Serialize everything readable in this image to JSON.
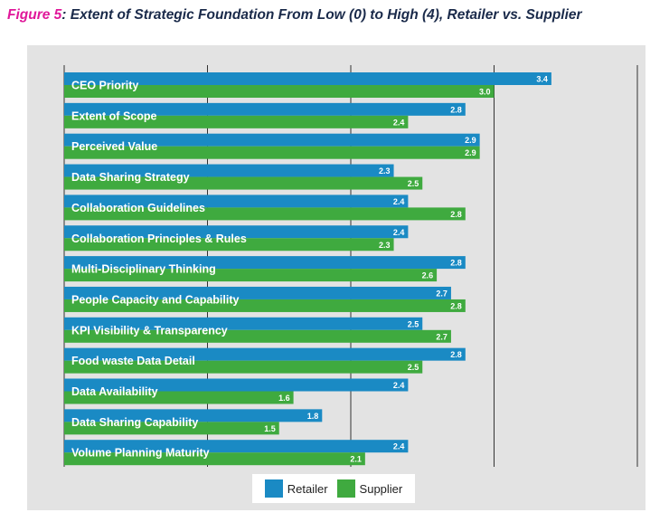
{
  "title": {
    "figure": "Figure 5",
    "text": ": Extent of Strategic Foundation From Low (0) to High (4), Retailer vs. Supplier"
  },
  "colors": {
    "retailer": "#1a8ac4",
    "supplier": "#3faa3f",
    "panel": "#e3e3e3",
    "grid": "#333333"
  },
  "chart_data": {
    "type": "bar",
    "orientation": "horizontal",
    "title": "Figure 5: Extent of Strategic Foundation From Low (0) to High (4), Retailer vs. Supplier",
    "xlim": [
      0,
      4
    ],
    "grid": true,
    "legend": "bottom-center",
    "categories": [
      "CEO Priority",
      "Extent of Scope",
      "Perceived Value",
      "Data Sharing Strategy",
      "Collaboration Guidelines",
      "Collaboration Principles & Rules",
      "Multi-Disciplinary Thinking",
      "People Capacity and Capability",
      "KPI Visibility & Transparency",
      "Food waste Data Detail",
      "Data Availability",
      "Data Sharing Capability",
      "Volume Planning Maturity"
    ],
    "series": [
      {
        "name": "Retailer",
        "values": [
          3.4,
          2.8,
          2.9,
          2.3,
          2.4,
          2.4,
          2.8,
          2.7,
          2.5,
          2.8,
          2.4,
          1.8,
          2.4
        ]
      },
      {
        "name": "Supplier",
        "values": [
          3.0,
          2.4,
          2.9,
          2.5,
          2.8,
          2.3,
          2.6,
          2.8,
          2.7,
          2.5,
          1.6,
          1.5,
          2.1
        ]
      }
    ]
  }
}
